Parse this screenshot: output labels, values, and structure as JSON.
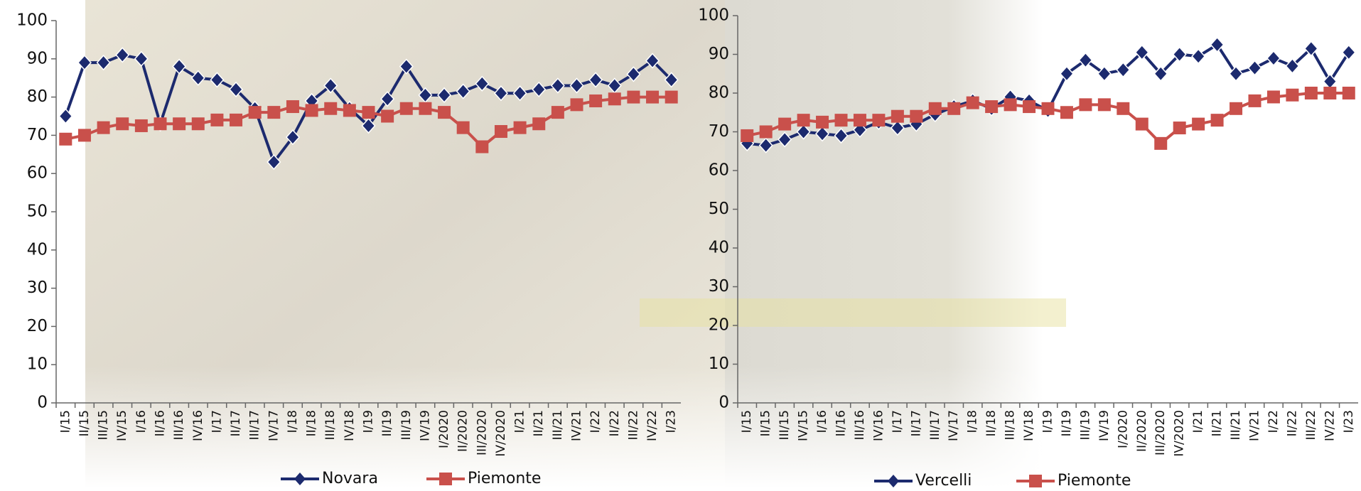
{
  "chart_data": [
    {
      "type": "line",
      "categories": [
        "I/15",
        "II/15",
        "III/15",
        "IV/15",
        "I/16",
        "II/16",
        "III/16",
        "IV/16",
        "I/17",
        "II/17",
        "III/17",
        "IV/17",
        "I/18",
        "II/18",
        "III/18",
        "IV/18",
        "I/19",
        "II/19",
        "III/19",
        "IV/19",
        "I/2020",
        "II/2020",
        "III/2020",
        "IV/2020",
        "I/21",
        "II/21",
        "III/21",
        "IV/21",
        "I/22",
        "II/22",
        "III/22",
        "IV/22",
        "I/23"
      ],
      "series": [
        {
          "name": "Novara",
          "color": "#1c2a6e",
          "marker": "diamond",
          "values": [
            75,
            89,
            89,
            91,
            90,
            73,
            88,
            85,
            84.5,
            82,
            77,
            63,
            69.5,
            79,
            83,
            77,
            72.5,
            79.5,
            88,
            80.5,
            80.5,
            81.5,
            83.5,
            81,
            81,
            82,
            83,
            83,
            84.5,
            83,
            86,
            89.5,
            84.5
          ]
        },
        {
          "name": "Piemonte",
          "color": "#c9504b",
          "marker": "square",
          "values": [
            69,
            70,
            72,
            73,
            72.5,
            73,
            73,
            73,
            74,
            74,
            76,
            76,
            77.5,
            76.5,
            77,
            76.5,
            76,
            75,
            77,
            77,
            76,
            72,
            67,
            71,
            72,
            73,
            76,
            78,
            79,
            79.5,
            80,
            80,
            80
          ]
        }
      ],
      "ylim": [
        0,
        100
      ],
      "yticks": [
        0,
        10,
        20,
        30,
        40,
        50,
        60,
        70,
        80,
        90,
        100
      ]
    },
    {
      "type": "line",
      "categories": [
        "I/15",
        "II/15",
        "III/15",
        "IV/15",
        "I/16",
        "II/16",
        "III/16",
        "IV/16",
        "I/17",
        "II/17",
        "III/17",
        "IV/17",
        "I/18",
        "II/18",
        "III/18",
        "IV/18",
        "I/19",
        "II/19",
        "III/19",
        "IV/19",
        "I/2020",
        "II/2020",
        "III/2020",
        "IV/2020",
        "I/21",
        "II/21",
        "III/21",
        "IV/21",
        "I/22",
        "II/22",
        "III/22",
        "IV/22",
        "I/23"
      ],
      "series": [
        {
          "name": "Vercelli",
          "color": "#1c2a6e",
          "marker": "diamond",
          "values": [
            67,
            66.5,
            68,
            70,
            69.5,
            69,
            70.5,
            72.5,
            71,
            72,
            74.5,
            76.5,
            78,
            76,
            79,
            78,
            75.5,
            85,
            88.5,
            85,
            86,
            90.5,
            85,
            90,
            89.5,
            92.5,
            85,
            86.5,
            89,
            87,
            91.5,
            83,
            90.5
          ]
        },
        {
          "name": "Piemonte",
          "color": "#c9504b",
          "marker": "square",
          "values": [
            69,
            70,
            72,
            73,
            72.5,
            73,
            73,
            73,
            74,
            74,
            76,
            76,
            77.5,
            76.5,
            77,
            76.5,
            76,
            75,
            77,
            77,
            76,
            72,
            67,
            71,
            72,
            73,
            76,
            78,
            79,
            79.5,
            80,
            80,
            80
          ]
        }
      ],
      "ylim": [
        0,
        100
      ],
      "yticks": [
        0,
        10,
        20,
        30,
        40,
        50,
        60,
        70,
        80,
        90,
        100
      ]
    }
  ]
}
